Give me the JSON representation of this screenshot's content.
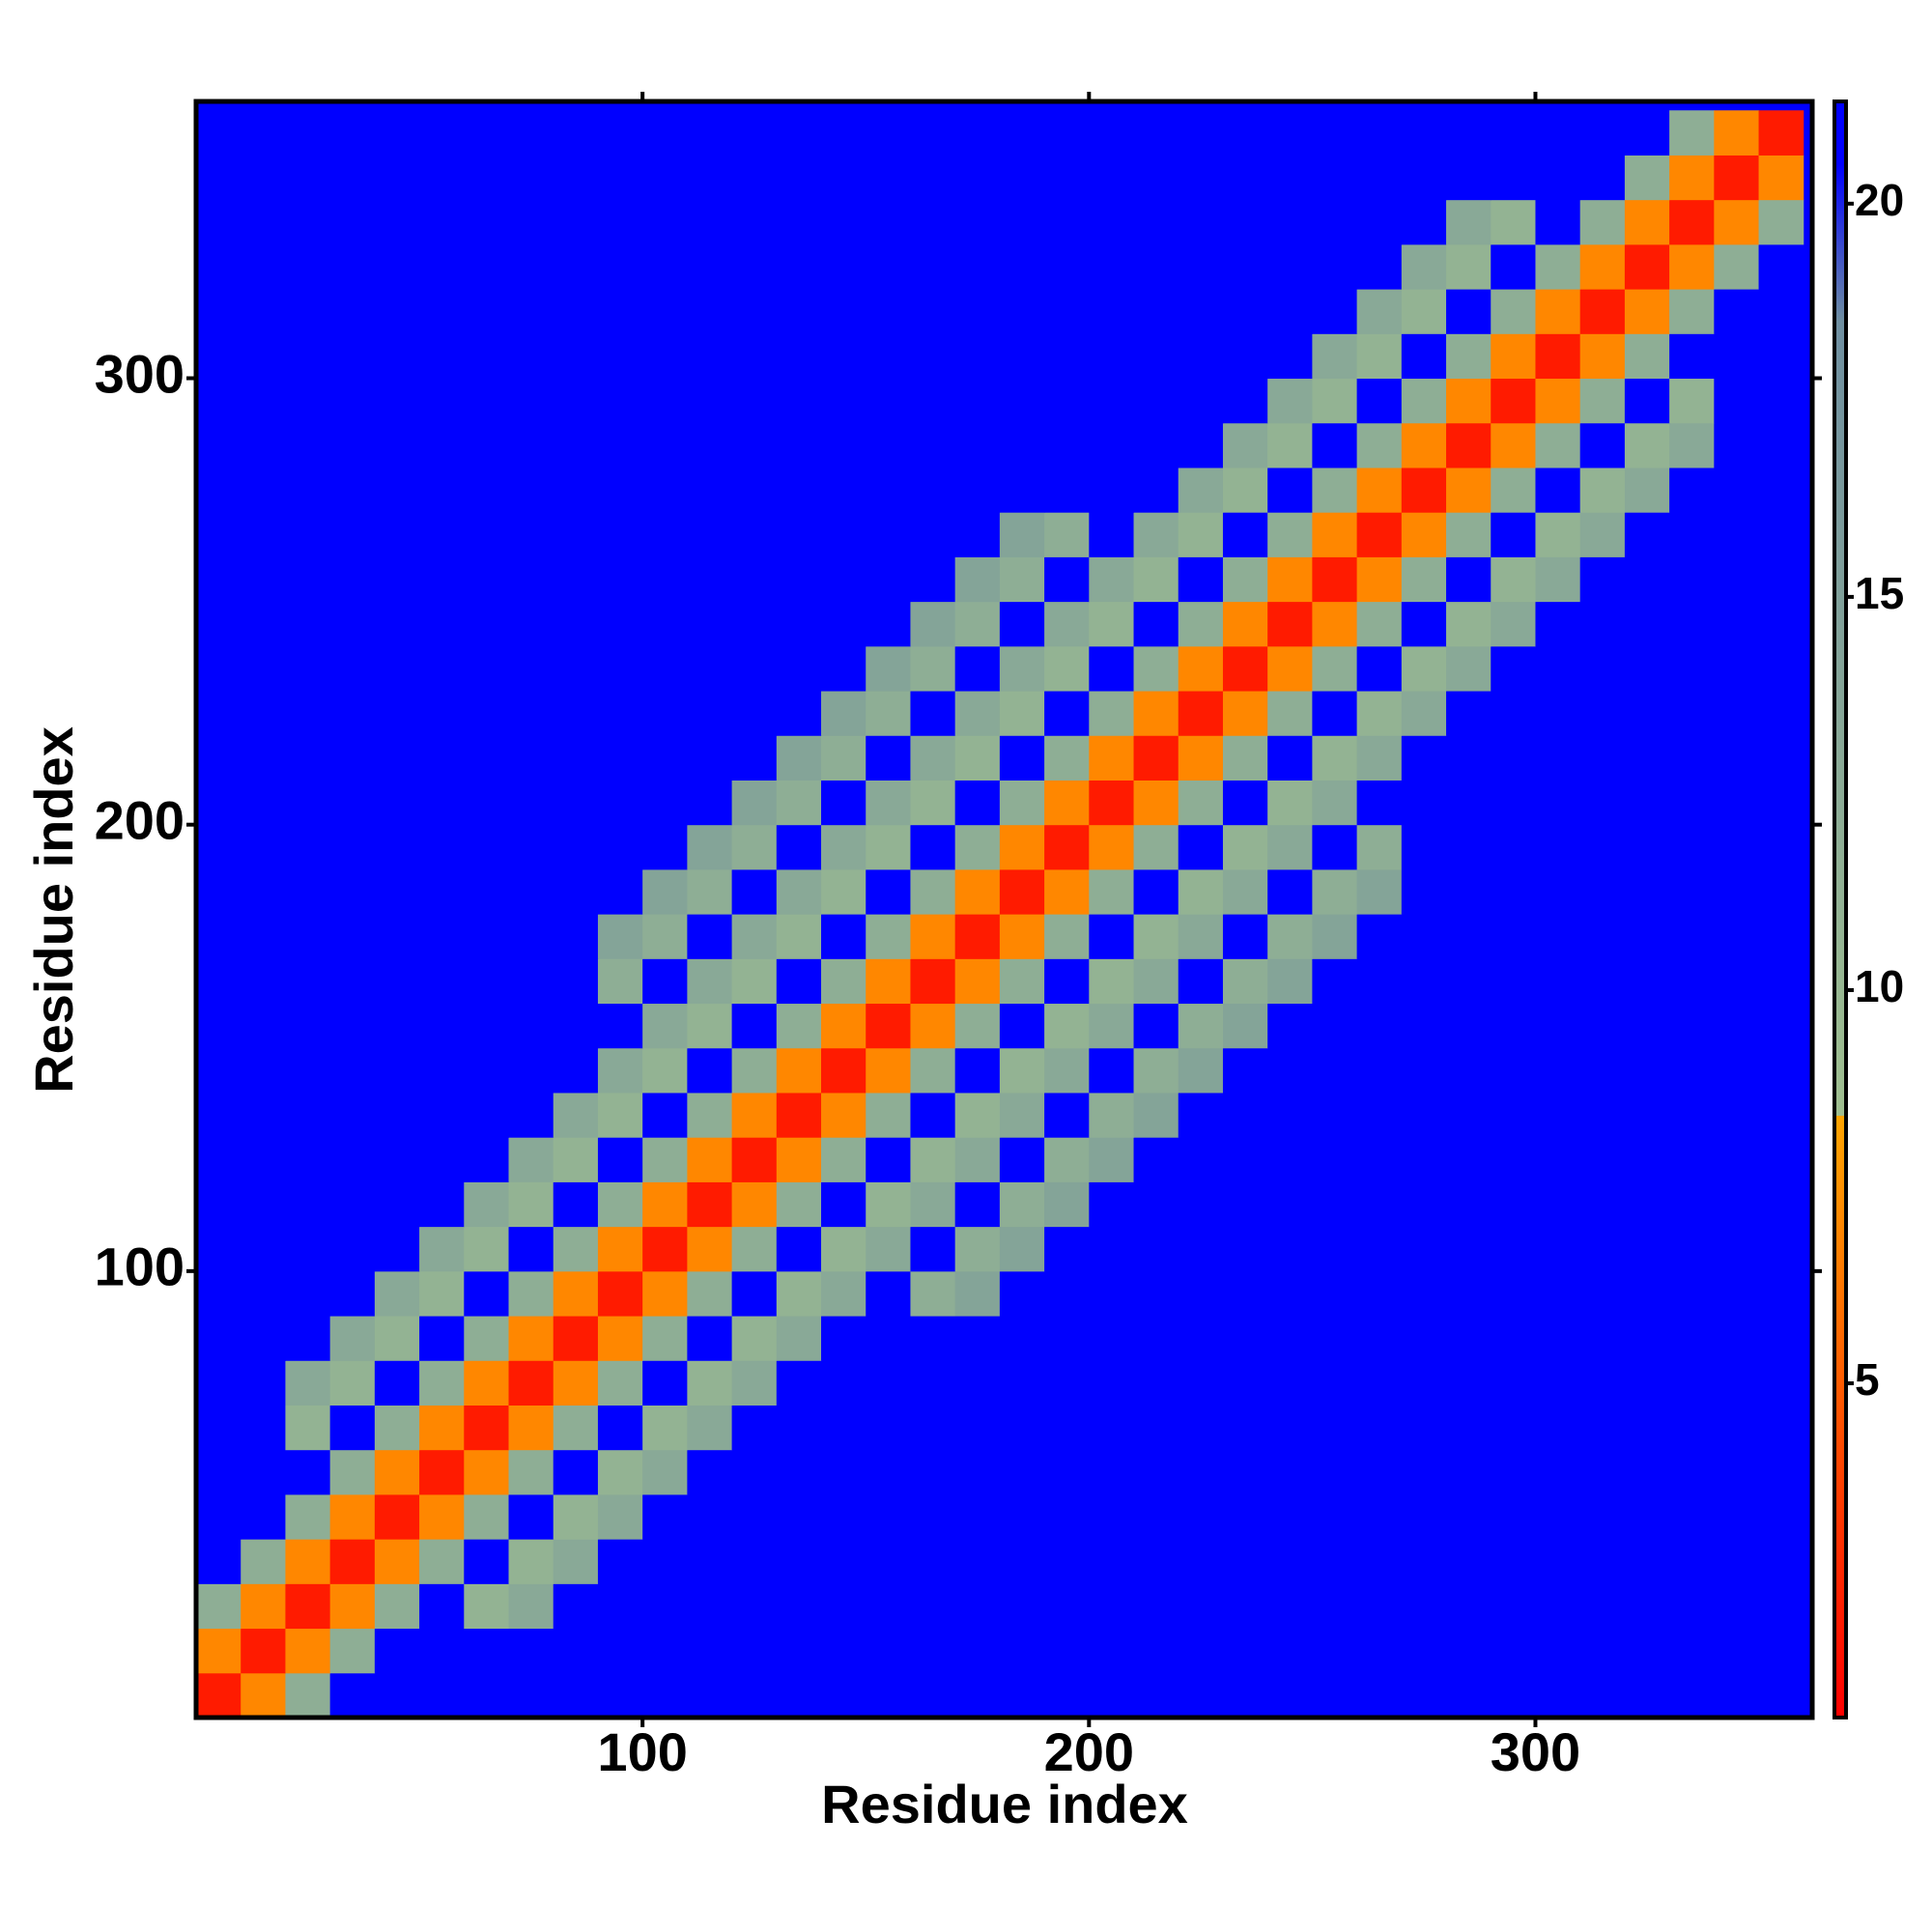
{
  "chart_data": {
    "type": "heatmap",
    "x_label": "Residue index",
    "y_label": "Residue index",
    "bins": [
      0,
      10,
      20,
      30,
      40,
      50,
      60,
      70,
      80,
      90,
      100,
      110,
      120,
      130,
      140,
      150,
      160,
      170,
      180,
      190,
      200,
      210,
      220,
      230,
      240,
      250,
      260,
      270,
      280,
      290,
      300,
      310,
      320,
      330,
      340,
      350,
      360
    ],
    "xlim": [
      0,
      362
    ],
    "ylim": [
      0,
      362
    ],
    "xticks": [
      100,
      200,
      300
    ],
    "yticks": [
      100,
      200,
      300
    ],
    "zlim": [
      0.75,
      21.3
    ],
    "zticks": [
      5,
      10,
      15,
      20
    ],
    "color_stops": [
      {
        "value": 0.75,
        "color": "#ff0000"
      },
      {
        "value": 8.4,
        "color": "#ffa500"
      },
      {
        "value": 8.4,
        "color": "#9fbf8f"
      },
      {
        "value": 18.5,
        "color": "#6f8fa0"
      },
      {
        "value": 20.5,
        "color": "#0000ff"
      }
    ],
    "z": [
      [
        2,
        7,
        12,
        21,
        21,
        21,
        21,
        21,
        21,
        21,
        21,
        21,
        21,
        21,
        21,
        21,
        21,
        21,
        21,
        21,
        21,
        21,
        21,
        21,
        21,
        21,
        21,
        21,
        21,
        21,
        21,
        21,
        21,
        21,
        21,
        21
      ],
      [
        7,
        2,
        7,
        12,
        21,
        21,
        21,
        21,
        21,
        21,
        21,
        21,
        21,
        21,
        21,
        21,
        21,
        21,
        21,
        21,
        21,
        21,
        21,
        21,
        21,
        21,
        21,
        21,
        21,
        21,
        21,
        21,
        21,
        21,
        21,
        21
      ],
      [
        12,
        7,
        2,
        7,
        12,
        21,
        11,
        13,
        21,
        21,
        21,
        21,
        21,
        21,
        21,
        21,
        21,
        21,
        21,
        21,
        21,
        21,
        21,
        21,
        21,
        21,
        21,
        21,
        21,
        21,
        21,
        21,
        21,
        21,
        21,
        21
      ],
      [
        21,
        12,
        7,
        2,
        7,
        12,
        21,
        11,
        13,
        21,
        21,
        21,
        21,
        21,
        21,
        21,
        21,
        21,
        21,
        21,
        21,
        21,
        21,
        21,
        21,
        21,
        21,
        21,
        21,
        21,
        21,
        21,
        21,
        21,
        21,
        21
      ],
      [
        21,
        21,
        12,
        7,
        2,
        7,
        12,
        21,
        11,
        13,
        21,
        21,
        21,
        21,
        21,
        21,
        21,
        21,
        21,
        21,
        21,
        21,
        21,
        21,
        21,
        21,
        21,
        21,
        21,
        21,
        21,
        21,
        21,
        21,
        21,
        21
      ],
      [
        21,
        21,
        21,
        12,
        7,
        2,
        7,
        12,
        21,
        11,
        13,
        21,
        21,
        21,
        21,
        21,
        21,
        21,
        21,
        21,
        21,
        21,
        21,
        21,
        21,
        21,
        21,
        21,
        21,
        21,
        21,
        21,
        21,
        21,
        21,
        21
      ],
      [
        21,
        21,
        11,
        21,
        12,
        7,
        2,
        7,
        12,
        21,
        11,
        13,
        21,
        21,
        21,
        21,
        21,
        21,
        21,
        21,
        21,
        21,
        21,
        21,
        21,
        21,
        21,
        21,
        21,
        21,
        21,
        21,
        21,
        21,
        21,
        21
      ],
      [
        21,
        21,
        13,
        11,
        21,
        12,
        7,
        2,
        7,
        12,
        21,
        11,
        13,
        21,
        21,
        21,
        21,
        21,
        21,
        21,
        21,
        21,
        21,
        21,
        21,
        21,
        21,
        21,
        21,
        21,
        21,
        21,
        21,
        21,
        21,
        21
      ],
      [
        21,
        21,
        21,
        13,
        11,
        21,
        12,
        7,
        2,
        7,
        12,
        21,
        11,
        13,
        21,
        21,
        21,
        21,
        21,
        21,
        21,
        21,
        21,
        21,
        21,
        21,
        21,
        21,
        21,
        21,
        21,
        21,
        21,
        21,
        21,
        21
      ],
      [
        21,
        21,
        21,
        21,
        13,
        11,
        21,
        12,
        7,
        2,
        7,
        12,
        21,
        11,
        13,
        21,
        12,
        14,
        21,
        21,
        21,
        21,
        21,
        21,
        21,
        21,
        21,
        21,
        21,
        21,
        21,
        21,
        21,
        21,
        21,
        21
      ],
      [
        21,
        21,
        21,
        21,
        21,
        13,
        11,
        21,
        12,
        7,
        2,
        7,
        12,
        21,
        11,
        13,
        21,
        12,
        14,
        21,
        21,
        21,
        21,
        21,
        21,
        21,
        21,
        21,
        21,
        21,
        21,
        21,
        21,
        21,
        21,
        21
      ],
      [
        21,
        21,
        21,
        21,
        21,
        21,
        13,
        11,
        21,
        12,
        7,
        2,
        7,
        12,
        21,
        11,
        13,
        21,
        12,
        14,
        21,
        21,
        21,
        21,
        21,
        21,
        21,
        21,
        21,
        21,
        21,
        21,
        21,
        21,
        21,
        21
      ],
      [
        21,
        21,
        21,
        21,
        21,
        21,
        21,
        13,
        11,
        21,
        12,
        7,
        2,
        7,
        12,
        21,
        11,
        13,
        21,
        12,
        14,
        21,
        21,
        21,
        21,
        21,
        21,
        21,
        21,
        21,
        21,
        21,
        21,
        21,
        21,
        21
      ],
      [
        21,
        21,
        21,
        21,
        21,
        21,
        21,
        21,
        13,
        11,
        21,
        12,
        7,
        2,
        7,
        12,
        21,
        11,
        13,
        21,
        12,
        14,
        21,
        21,
        21,
        21,
        21,
        21,
        21,
        21,
        21,
        21,
        21,
        21,
        21,
        21
      ],
      [
        21,
        21,
        21,
        21,
        21,
        21,
        21,
        21,
        21,
        13,
        11,
        21,
        12,
        7,
        2,
        7,
        12,
        21,
        11,
        13,
        21,
        12,
        14,
        21,
        21,
        21,
        21,
        21,
        21,
        21,
        21,
        21,
        21,
        21,
        21,
        21
      ],
      [
        21,
        21,
        21,
        21,
        21,
        21,
        21,
        21,
        21,
        21,
        13,
        11,
        21,
        12,
        7,
        2,
        7,
        12,
        21,
        11,
        13,
        21,
        12,
        14,
        21,
        21,
        21,
        21,
        21,
        21,
        21,
        21,
        21,
        21,
        21,
        21
      ],
      [
        21,
        21,
        21,
        21,
        21,
        21,
        21,
        21,
        21,
        12,
        21,
        13,
        11,
        21,
        12,
        7,
        2,
        7,
        12,
        21,
        11,
        13,
        21,
        12,
        14,
        21,
        21,
        21,
        21,
        21,
        21,
        21,
        21,
        21,
        21,
        21
      ],
      [
        21,
        21,
        21,
        21,
        21,
        21,
        21,
        21,
        21,
        14,
        12,
        21,
        13,
        11,
        21,
        12,
        7,
        2,
        7,
        12,
        21,
        11,
        13,
        21,
        12,
        14,
        21,
        21,
        21,
        21,
        21,
        21,
        21,
        21,
        21,
        21
      ],
      [
        21,
        21,
        21,
        21,
        21,
        21,
        21,
        21,
        21,
        21,
        14,
        12,
        21,
        13,
        11,
        21,
        12,
        7,
        2,
        7,
        12,
        21,
        11,
        13,
        21,
        12,
        14,
        21,
        21,
        21,
        21,
        21,
        21,
        21,
        21,
        21
      ],
      [
        21,
        21,
        21,
        21,
        21,
        21,
        21,
        21,
        21,
        21,
        21,
        14,
        12,
        21,
        13,
        11,
        21,
        12,
        7,
        2,
        7,
        12,
        21,
        11,
        13,
        21,
        12,
        21,
        21,
        21,
        21,
        21,
        21,
        21,
        21,
        21
      ],
      [
        21,
        21,
        21,
        21,
        21,
        21,
        21,
        21,
        21,
        21,
        21,
        21,
        14,
        12,
        21,
        13,
        11,
        21,
        12,
        7,
        2,
        7,
        12,
        21,
        11,
        13,
        21,
        21,
        21,
        21,
        21,
        21,
        21,
        21,
        21,
        21
      ],
      [
        21,
        21,
        21,
        21,
        21,
        21,
        21,
        21,
        21,
        21,
        21,
        21,
        21,
        14,
        12,
        21,
        13,
        11,
        21,
        12,
        7,
        2,
        7,
        12,
        21,
        11,
        13,
        21,
        21,
        21,
        21,
        21,
        21,
        21,
        21,
        21
      ],
      [
        21,
        21,
        21,
        21,
        21,
        21,
        21,
        21,
        21,
        21,
        21,
        21,
        21,
        21,
        14,
        12,
        21,
        13,
        11,
        21,
        12,
        7,
        2,
        7,
        12,
        21,
        11,
        13,
        21,
        21,
        21,
        21,
        21,
        21,
        21,
        21
      ],
      [
        21,
        21,
        21,
        21,
        21,
        21,
        21,
        21,
        21,
        21,
        21,
        21,
        21,
        21,
        21,
        14,
        12,
        21,
        13,
        11,
        21,
        12,
        7,
        2,
        7,
        12,
        21,
        11,
        13,
        21,
        21,
        21,
        21,
        21,
        21,
        21
      ],
      [
        21,
        21,
        21,
        21,
        21,
        21,
        21,
        21,
        21,
        21,
        21,
        21,
        21,
        21,
        21,
        21,
        14,
        12,
        21,
        13,
        11,
        21,
        12,
        7,
        2,
        7,
        12,
        21,
        11,
        13,
        21,
        21,
        21,
        21,
        21,
        21
      ],
      [
        21,
        21,
        21,
        21,
        21,
        21,
        21,
        21,
        21,
        21,
        21,
        21,
        21,
        21,
        21,
        21,
        21,
        14,
        12,
        21,
        13,
        11,
        21,
        12,
        7,
        2,
        7,
        12,
        21,
        11,
        13,
        21,
        21,
        21,
        21,
        21
      ],
      [
        21,
        21,
        21,
        21,
        21,
        21,
        21,
        21,
        21,
        21,
        21,
        21,
        21,
        21,
        21,
        21,
        21,
        21,
        14,
        12,
        21,
        13,
        11,
        21,
        12,
        7,
        2,
        7,
        12,
        21,
        11,
        13,
        21,
        21,
        21,
        21
      ],
      [
        21,
        21,
        21,
        21,
        21,
        21,
        21,
        21,
        21,
        21,
        21,
        21,
        21,
        21,
        21,
        21,
        21,
        21,
        21,
        21,
        21,
        21,
        13,
        11,
        21,
        12,
        7,
        2,
        7,
        12,
        21,
        11,
        13,
        21,
        21,
        21
      ],
      [
        21,
        21,
        21,
        21,
        21,
        21,
        21,
        21,
        21,
        21,
        21,
        21,
        21,
        21,
        21,
        21,
        21,
        21,
        21,
        21,
        21,
        21,
        21,
        13,
        11,
        21,
        12,
        7,
        2,
        7,
        12,
        21,
        11,
        13,
        21,
        21
      ],
      [
        21,
        21,
        21,
        21,
        21,
        21,
        21,
        21,
        21,
        21,
        21,
        21,
        21,
        21,
        21,
        21,
        21,
        21,
        21,
        21,
        21,
        21,
        21,
        21,
        13,
        11,
        21,
        12,
        7,
        2,
        7,
        12,
        21,
        11,
        21,
        21
      ],
      [
        21,
        21,
        21,
        21,
        21,
        21,
        21,
        21,
        21,
        21,
        21,
        21,
        21,
        21,
        21,
        21,
        21,
        21,
        21,
        21,
        21,
        21,
        21,
        21,
        21,
        13,
        11,
        21,
        12,
        7,
        2,
        7,
        12,
        21,
        21,
        21
      ],
      [
        21,
        21,
        21,
        21,
        21,
        21,
        21,
        21,
        21,
        21,
        21,
        21,
        21,
        21,
        21,
        21,
        21,
        21,
        21,
        21,
        21,
        21,
        21,
        21,
        21,
        21,
        13,
        11,
        21,
        12,
        7,
        2,
        7,
        12,
        21,
        21
      ],
      [
        21,
        21,
        21,
        21,
        21,
        21,
        21,
        21,
        21,
        21,
        21,
        21,
        21,
        21,
        21,
        21,
        21,
        21,
        21,
        21,
        21,
        21,
        21,
        21,
        21,
        21,
        21,
        13,
        11,
        21,
        12,
        7,
        2,
        7,
        12,
        21
      ],
      [
        21,
        21,
        21,
        21,
        21,
        21,
        21,
        21,
        21,
        21,
        21,
        21,
        21,
        21,
        21,
        21,
        21,
        21,
        21,
        21,
        21,
        21,
        21,
        21,
        21,
        21,
        21,
        21,
        13,
        11,
        21,
        12,
        7,
        2,
        7,
        12
      ],
      [
        21,
        21,
        21,
        21,
        21,
        21,
        21,
        21,
        21,
        21,
        21,
        21,
        21,
        21,
        21,
        21,
        21,
        21,
        21,
        21,
        21,
        21,
        21,
        21,
        21,
        21,
        21,
        21,
        21,
        21,
        21,
        21,
        12,
        7,
        2,
        7
      ],
      [
        21,
        21,
        21,
        21,
        21,
        21,
        21,
        21,
        21,
        21,
        21,
        21,
        21,
        21,
        21,
        21,
        21,
        21,
        21,
        21,
        21,
        21,
        21,
        21,
        21,
        21,
        21,
        21,
        21,
        21,
        21,
        21,
        21,
        12,
        7,
        2
      ]
    ]
  }
}
